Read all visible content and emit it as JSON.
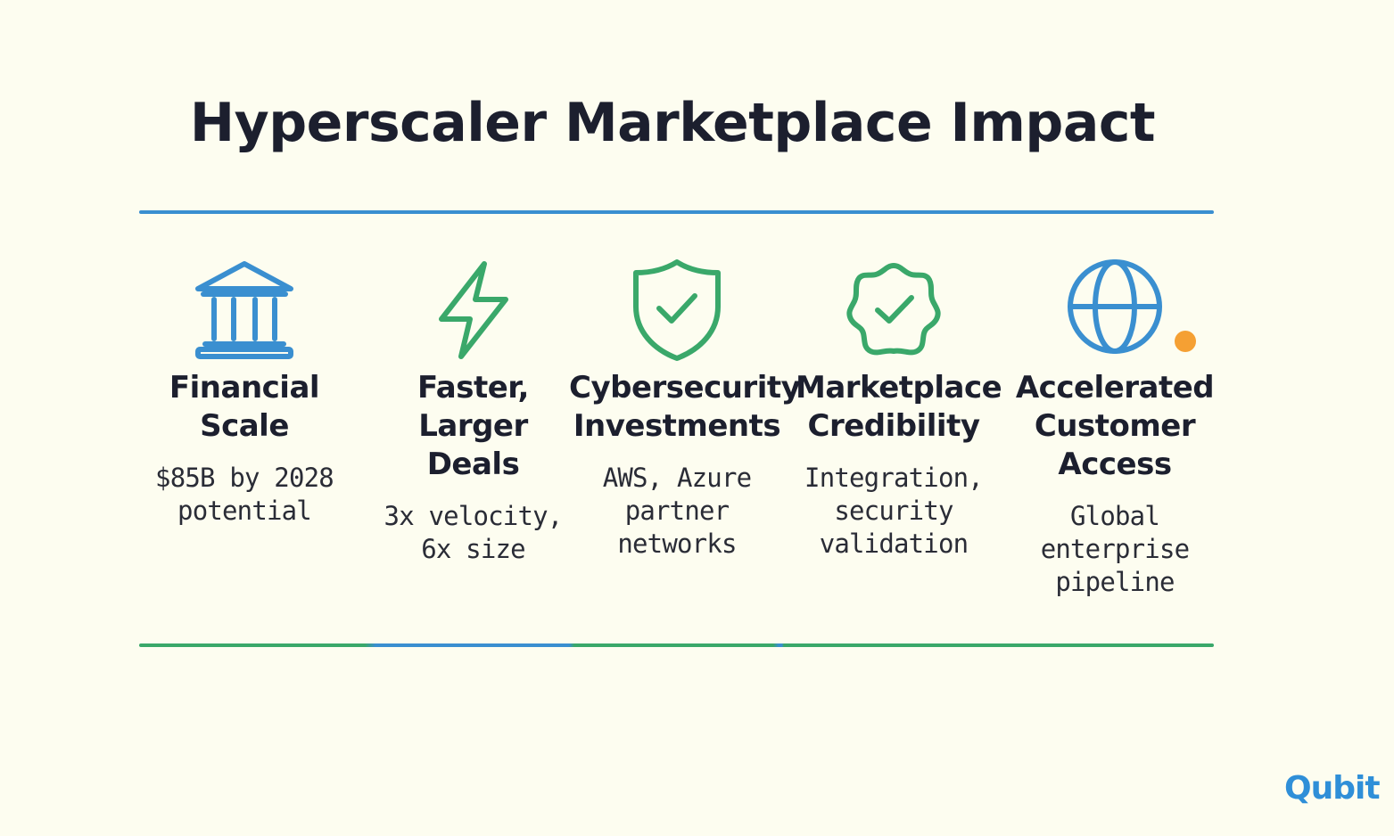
{
  "title": "Hyperscaler Marketplace Impact",
  "colors": {
    "blue": "#3a8fd0",
    "green": "#3aa86a",
    "orange": "#f5a033",
    "background": "#fdfdf0"
  },
  "items": [
    {
      "icon": "bank-icon",
      "title": "Financial\nScale",
      "desc": "$85B by 2028\npotential"
    },
    {
      "icon": "lightning-icon",
      "title": "Faster,\nLarger\nDeals",
      "desc": "3x velocity,\n6x size"
    },
    {
      "icon": "shield-check-icon",
      "title": "Cybersecurity\nInvestments",
      "desc": "AWS, Azure\npartner\nnetworks"
    },
    {
      "icon": "badge-check-icon",
      "title": "Marketplace\nCredibility",
      "desc": "Integration,\nsecurity\nvalidation"
    },
    {
      "icon": "globe-icon",
      "title": "Accelerated\nCustomer\nAccess",
      "desc": "Global\nenterprise\npipeline"
    }
  ],
  "logo": "Qubit"
}
